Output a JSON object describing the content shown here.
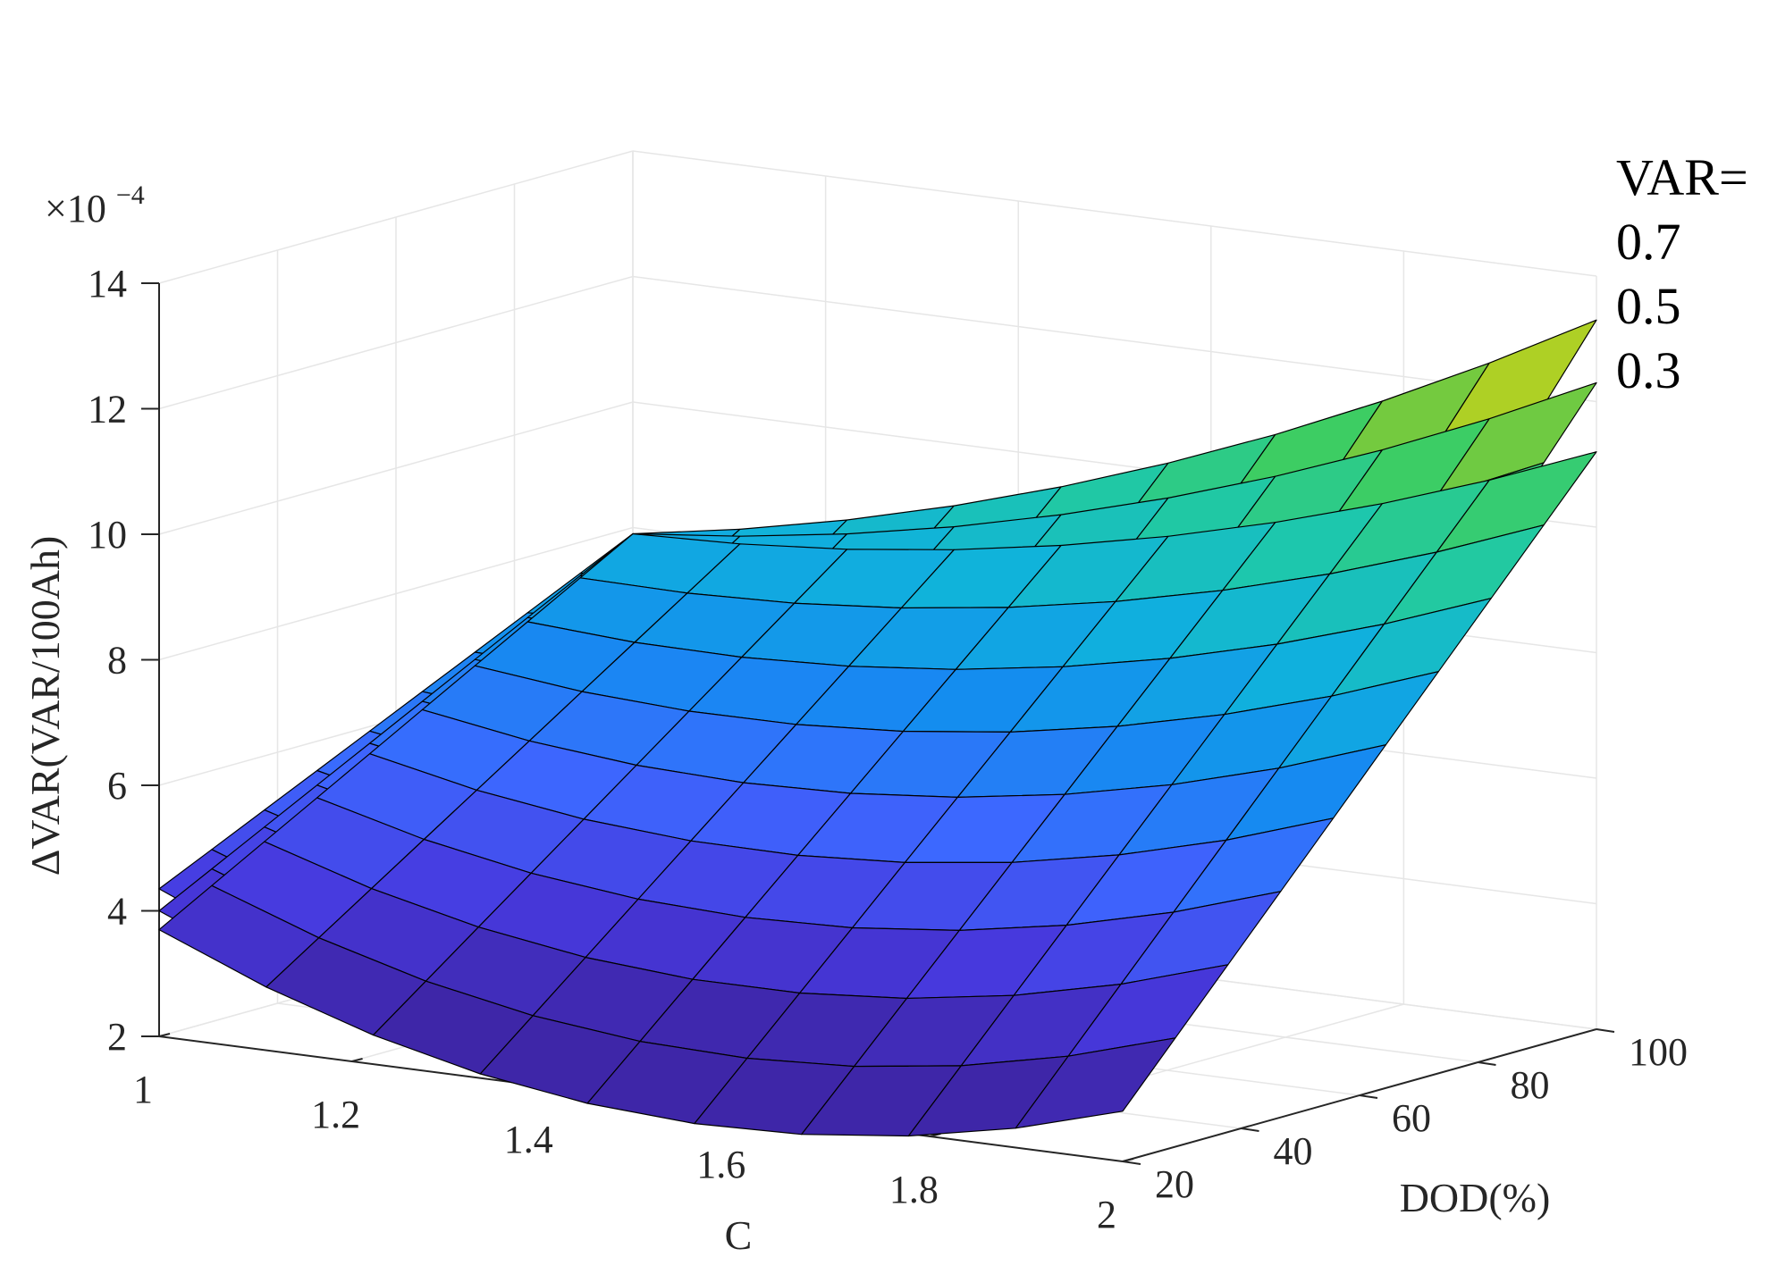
{
  "chart_data": {
    "type": "surface3d",
    "title": "",
    "xlabel": "C",
    "ylabel": "DOD(%)",
    "zlabel": "ΔVAR(VAR/100Ah)",
    "z_exponent_label": "×10",
    "z_exponent_power": "−4",
    "xlim": [
      1,
      2
    ],
    "ylim": [
      20,
      100
    ],
    "zlim": [
      2,
      14
    ],
    "x_ticks": [
      {
        "value": 1,
        "label": "1"
      },
      {
        "value": 1.2,
        "label": "1.2"
      },
      {
        "value": 1.4,
        "label": "1.4"
      },
      {
        "value": 1.6,
        "label": "1.6"
      },
      {
        "value": 1.8,
        "label": "1.8"
      },
      {
        "value": 2,
        "label": "2"
      }
    ],
    "y_ticks": [
      {
        "value": 20,
        "label": "20"
      },
      {
        "value": 40,
        "label": "40"
      },
      {
        "value": 60,
        "label": "60"
      },
      {
        "value": 80,
        "label": "80"
      },
      {
        "value": 100,
        "label": "100"
      }
    ],
    "z_ticks": [
      {
        "value": 2,
        "label": "2"
      },
      {
        "value": 4,
        "label": "4"
      },
      {
        "value": 6,
        "label": "6"
      },
      {
        "value": 8,
        "label": "8"
      },
      {
        "value": 10,
        "label": "10"
      },
      {
        "value": 12,
        "label": "12"
      },
      {
        "value": 14,
        "label": "14"
      }
    ],
    "grid": true,
    "colormap": "parula",
    "annotation_header": "VAR=",
    "series": [
      {
        "label": "0.7",
        "corners": {
          "c1_dod20": 4.35,
          "c2_dod20": 3.15,
          "c1_dod100": 7.9,
          "c2_dod100": 13.3
        }
      },
      {
        "label": "0.5",
        "corners": {
          "c1_dod20": 4.0,
          "c2_dod20": 2.95,
          "c1_dod100": 7.9,
          "c2_dod100": 12.3
        }
      },
      {
        "label": "0.3",
        "corners": {
          "c1_dod20": 3.7,
          "c2_dod20": 2.8,
          "c1_dod100": 7.9,
          "c2_dod100": 11.2
        }
      }
    ]
  }
}
